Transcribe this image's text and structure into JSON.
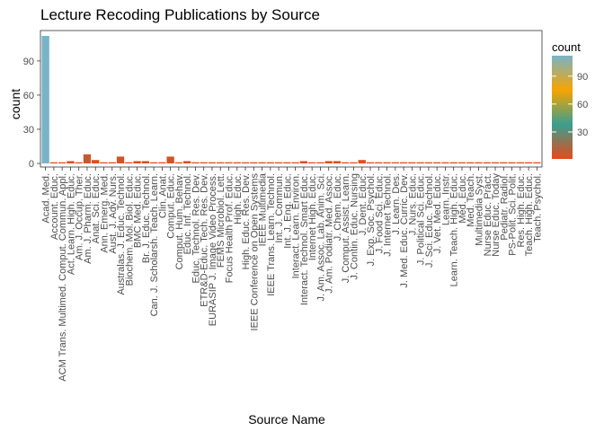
{
  "chart_data": {
    "type": "bar",
    "title": "Lecture Recoding Publications by Source",
    "xlabel": "Source Name",
    "ylabel": "count",
    "ylim": [
      0,
      114
    ],
    "yticks": [
      0,
      30,
      60,
      90
    ],
    "grid": false,
    "legend": {
      "title": "count",
      "position": "right",
      "ticks": [
        30,
        60,
        90
      ],
      "gradient_colors": [
        "#e64a19",
        "#3a9e8f",
        "#f7a400",
        "#78b4c8"
      ]
    },
    "colors": {
      "low": "#e64a19",
      "mid_low": "#3a9e8f",
      "mid_high": "#f7a400",
      "high": "#78b4c8"
    },
    "categories": [
      "Acad. Med.",
      "Account. Educ.",
      "ACM Trans. Multimed. Comput. Commun. Appl.",
      "Act. Learn. High. Educ.",
      "Am. J. Occup. Ther.",
      "Am. J. Pharm. Educ.",
      "Anat. Sci. Educ.",
      "Ann. Emerg. Med.",
      "Aust. J. Adv. Nurs.",
      "Australas. J. Educ. Technol.",
      "Biochem. Mol. Biol. Educ.",
      "BMC Med. Educ.",
      "Br. J. Educ. Technol.",
      "Can. J. Scholarsh. Teach. Learn.",
      "Clin. Anat.",
      "Comput. Educ.",
      "Comput. Hum. Behav.",
      "Educ. Inf. Technol.",
      "Educ. Technol. Res. Dev.",
      "ETR&D-Educ. Tech. Res. Dev.",
      "EURASIP J. Image Video Process.",
      "FEMS Microbiol. Lett.",
      "Focus Health Prof. Educ.",
      "High. Educ.",
      "High. Educ. Res. Dev.",
      "IEEE Conference on Open Systems",
      "IEEE Multimedia",
      "IEEE Trans. Learn. Technol.",
      "Int. J. Commun.",
      "Int. J. Eng. Educ.",
      "Interact. Learn. Environ.",
      "Interact. Technol. Smart Educ.",
      "Internet High. Educ.",
      "J. Am. Assoc. Lab. Anim. Sci.",
      "J. Am. Podiatr. Med. Assoc.",
      "J. Chem. Educ.",
      "J. Comput. Assist. Learn.",
      "J. Contin. Educ. Nursing",
      "J. Dent. Educ.",
      "J. Exp. Soc. Psychol.",
      "J. Food Sci. Educ.",
      "J. Internet Technol.",
      "J. Learn. Des.",
      "J. Med. Educ. Curric. Dev.",
      "J. Nurs. Educ.",
      "J. Political Sci. Educ.",
      "J. Sci. Educ. Technol.",
      "J. Vet. Med. Educ.",
      "Learn. Instr.",
      "Learn. Teach. High. Educ.",
      "Med. Educ.",
      "Med. Teach.",
      "Multimedia Syst.",
      "Nurse Educ. Pract.",
      "Nurse Educ. Today",
      "Pediatr. Radiol.",
      "PS-Polit. Sci. Polit.",
      "Res. High. Educ.",
      "Teach. High. Educ.",
      "Teach. Psychol."
    ],
    "values": [
      112,
      1,
      1,
      2,
      1,
      8,
      3,
      1,
      1,
      6,
      1,
      2,
      2,
      1,
      1,
      6,
      1,
      2,
      1,
      1,
      1,
      1,
      1,
      1,
      1,
      1,
      1,
      1,
      1,
      1,
      1,
      2,
      1,
      1,
      2,
      2,
      1,
      1,
      3,
      1,
      1,
      1,
      1,
      1,
      1,
      1,
      1,
      1,
      1,
      1,
      1,
      1,
      1,
      1,
      1,
      1,
      1,
      1,
      1,
      1
    ]
  }
}
